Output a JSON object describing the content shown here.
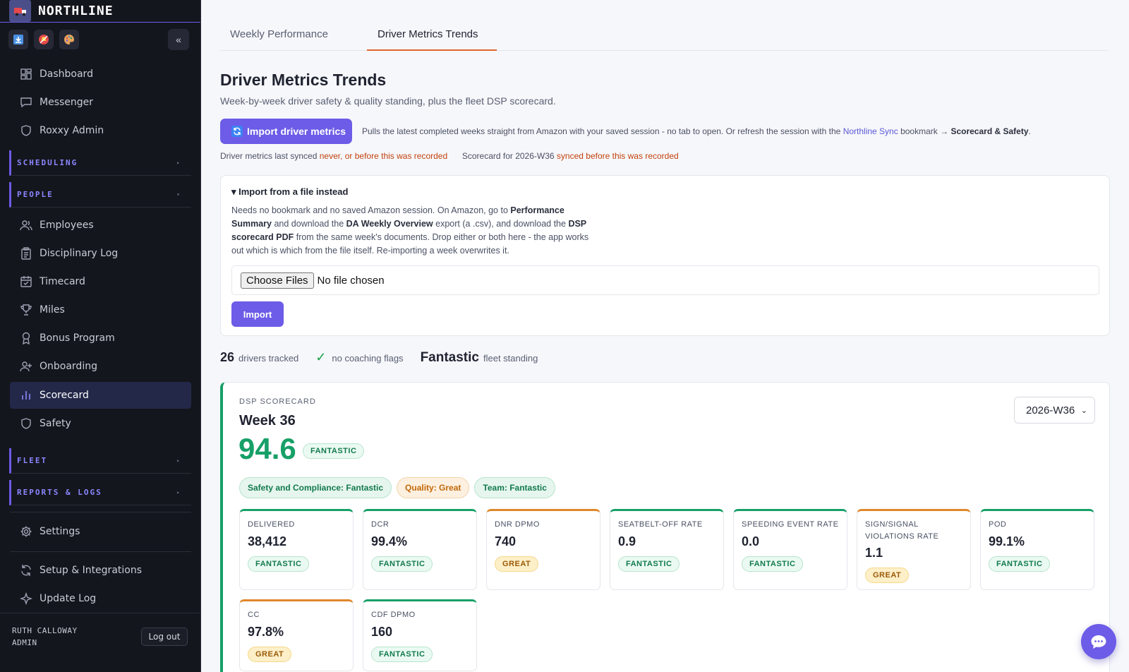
{
  "app": {
    "name": "NORTHLINE"
  },
  "sidebar": {
    "collapse_label": "«",
    "items": {
      "dashboard": "Dashboard",
      "messenger": "Messenger",
      "roxxy": "Roxxy Admin",
      "employees": "Employees",
      "disciplinary": "Disciplinary Log",
      "timecard": "Timecard",
      "miles": "Miles",
      "bonus": "Bonus Program",
      "onboarding": "Onboarding",
      "scorecard": "Scorecard",
      "safety": "Safety",
      "settings": "Settings",
      "setup": "Setup & Integrations",
      "update_log": "Update Log"
    },
    "sections": {
      "scheduling": "SCHEDULING",
      "people": "PEOPLE",
      "fleet": "FLEET",
      "reports": "REPORTS & LOGS"
    },
    "active": "scorecard",
    "user": {
      "name": "RUTH CALLOWAY",
      "role": "ADMIN",
      "logout": "Log out"
    }
  },
  "tabs": [
    {
      "label": "Weekly Performance",
      "active": false
    },
    {
      "label": "Driver Metrics Trends",
      "active": true
    }
  ],
  "header": {
    "title": "Driver Metrics Trends",
    "subtitle": "Week-by-week driver safety & quality standing, plus the fleet DSP scorecard."
  },
  "import": {
    "button_label": "Import driver metrics",
    "note_prefix": "Pulls the latest completed weeks straight from Amazon with your saved session - no tab to open. Or refresh the session with the",
    "note_link": "Northline Sync",
    "note_middle": "bookmark →",
    "note_bold": "Scorecard & Safety",
    "note_end": "."
  },
  "sync": {
    "metrics_label": "Driver metrics last synced",
    "metrics_value": "never, or before this was recorded",
    "scorecard_label": "Scorecard for 2026-W36",
    "scorecard_value": "synced before this was recorded"
  },
  "file_import": {
    "title": "▾ Import from a file instead",
    "t1": "Needs no bookmark and no saved Amazon session. On Amazon, go to",
    "b1": "Performance Summary",
    "t2": "and download the",
    "b2": "DA Weekly Overview",
    "t3": "export (a .csv), and download the",
    "b3": "DSP scorecard PDF",
    "t4": "from the same week's documents. Drop either or both here - the app works out which is which from the file itself. Re-importing a week overwrites it.",
    "choose_label": "Choose Files",
    "no_file": "No file chosen",
    "import_label": "Import"
  },
  "stats": {
    "drivers_count": "26",
    "drivers_label": "drivers tracked",
    "check": "✓",
    "coaching_label": "no coaching flags",
    "standing_value": "Fantastic",
    "standing_label": "fleet standing"
  },
  "scorecard": {
    "kicker": "DSP SCORECARD",
    "week_title": "Week 36",
    "score": "94.6",
    "score_badge": "FANTASTIC",
    "week_select": "2026-W36",
    "categories": [
      {
        "label": "Safety and Compliance: Fantastic",
        "tier": "fantastic"
      },
      {
        "label": "Quality: Great",
        "tier": "great"
      },
      {
        "label": "Team: Fantastic",
        "tier": "fantastic"
      }
    ],
    "metrics": [
      {
        "label": "DELIVERED",
        "value": "38,412",
        "tier": "FANTASTIC"
      },
      {
        "label": "DCR",
        "value": "99.4%",
        "tier": "FANTASTIC"
      },
      {
        "label": "DNR DPMO",
        "value": "740",
        "tier": "GREAT"
      },
      {
        "label": "SEATBELT-OFF RATE",
        "value": "0.9",
        "tier": "FANTASTIC"
      },
      {
        "label": "SPEEDING EVENT RATE",
        "value": "0.0",
        "tier": "FANTASTIC"
      },
      {
        "label": "SIGN/SIGNAL VIOLATIONS RATE",
        "value": "1.1",
        "tier": "GREAT"
      },
      {
        "label": "POD",
        "value": "99.1%",
        "tier": "FANTASTIC"
      },
      {
        "label": "CC",
        "value": "97.8%",
        "tier": "GREAT"
      },
      {
        "label": "CDF DPMO",
        "value": "160",
        "tier": "FANTASTIC"
      }
    ]
  },
  "colors": {
    "accent": "#6c5ce7",
    "fantastic": "#16a067",
    "great": "#e0872a",
    "warning_text": "#c2410c",
    "sidebar_bg": "#14161d"
  }
}
